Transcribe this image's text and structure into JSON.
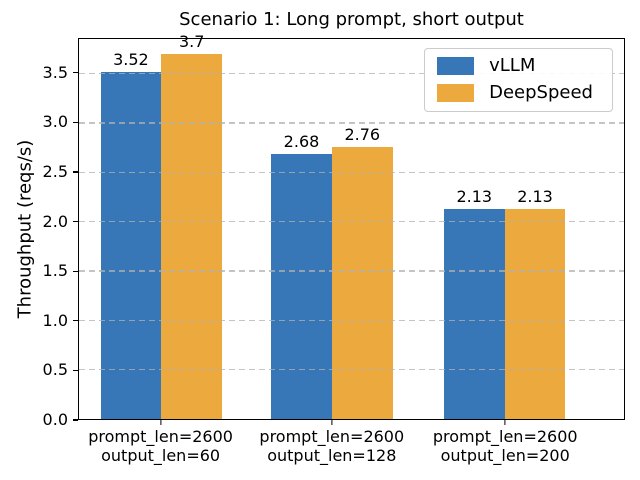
{
  "figure": {
    "background": "#ffffff"
  },
  "chart_data": {
    "type": "bar",
    "title": "Scenario 1: Long prompt, short output",
    "xlabel": "",
    "ylabel": "Throughput (reqs/s)",
    "ylim": [
      0,
      3.85
    ],
    "yticks": [
      0.0,
      0.5,
      1.0,
      1.5,
      2.0,
      2.5,
      3.0,
      3.5
    ],
    "grid": "horizontal dashed gridlines drawn over bars",
    "legend_position": "upper right",
    "categories": [
      {
        "line1": "prompt_len=2600",
        "line2": "output_len=60"
      },
      {
        "line1": "prompt_len=2600",
        "line2": "output_len=128"
      },
      {
        "line1": "prompt_len=2600",
        "line2": "output_len=200"
      }
    ],
    "series": [
      {
        "name": "vLLM",
        "color": "#3777b8",
        "values": [
          3.52,
          2.68,
          2.13
        ],
        "labels": [
          "3.52",
          "2.68",
          "2.13"
        ]
      },
      {
        "name": "DeepSpeed",
        "color": "#eba93e",
        "values": [
          3.7,
          2.76,
          2.13
        ],
        "labels": [
          "3.7",
          "2.76",
          "2.13"
        ]
      }
    ],
    "layout": {
      "group_centers_pct": [
        15.1,
        46.4,
        78.1
      ],
      "bar_width_pct": 11.15
    }
  },
  "colors": {
    "grid": "rgba(176,176,176,0.75)",
    "axis": "#000000",
    "legend_border": "#cccccc",
    "text": "#000000"
  }
}
